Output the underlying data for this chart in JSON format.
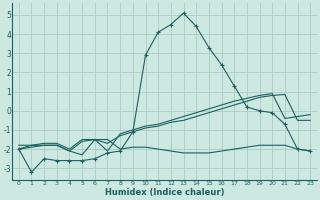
{
  "xlabel": "Humidex (Indice chaleur)",
  "bg_color": "#cce8e0",
  "grid_color": "#aaccc4",
  "line_color": "#1a6060",
  "xlim": [
    -0.5,
    23.5
  ],
  "ylim": [
    -3.6,
    5.6
  ],
  "xticks": [
    0,
    1,
    2,
    3,
    4,
    5,
    6,
    7,
    8,
    9,
    10,
    11,
    12,
    13,
    14,
    15,
    16,
    17,
    18,
    19,
    20,
    21,
    22,
    23
  ],
  "yticks": [
    -3,
    -2,
    -1,
    0,
    1,
    2,
    3,
    4,
    5
  ],
  "line1_x": [
    0,
    1,
    2,
    3,
    4,
    5,
    6,
    7,
    8,
    9,
    10,
    11,
    12,
    13,
    14,
    15,
    16,
    17,
    18,
    19,
    20,
    21,
    22,
    23
  ],
  "line1_y": [
    -2.0,
    -3.2,
    -2.5,
    -2.6,
    -2.6,
    -2.6,
    -2.5,
    -2.2,
    -2.1,
    -1.1,
    2.9,
    4.1,
    4.5,
    5.1,
    4.4,
    3.3,
    2.4,
    1.3,
    0.2,
    0.0,
    -0.1,
    -0.7,
    -2.0,
    -2.1
  ],
  "line2_x": [
    0,
    1,
    2,
    3,
    4,
    5,
    6,
    7,
    8,
    9,
    10,
    11,
    12,
    13,
    14,
    15,
    16,
    17,
    18,
    19,
    20,
    21,
    22,
    23
  ],
  "line2_y": [
    -2.0,
    -1.8,
    -1.8,
    -1.8,
    -2.1,
    -1.6,
    -1.5,
    -1.7,
    -1.3,
    -1.1,
    -0.9,
    -0.8,
    -0.6,
    -0.5,
    -0.3,
    -0.1,
    0.1,
    0.3,
    0.5,
    0.7,
    0.8,
    0.85,
    -0.5,
    -0.5
  ],
  "line3_x": [
    0,
    1,
    2,
    3,
    4,
    5,
    6,
    7,
    8,
    9,
    10,
    11,
    12,
    13,
    14,
    15,
    16,
    17,
    18,
    19,
    20,
    21,
    22,
    23
  ],
  "line3_y": [
    -2.0,
    -1.9,
    -1.8,
    -1.8,
    -2.1,
    -2.3,
    -1.5,
    -1.5,
    -2.0,
    -1.9,
    -1.9,
    -2.0,
    -2.1,
    -2.2,
    -2.2,
    -2.2,
    -2.1,
    -2.0,
    -1.9,
    -1.8,
    -1.8,
    -1.8,
    -2.0,
    -2.1
  ],
  "line4_x": [
    0,
    1,
    2,
    3,
    4,
    5,
    6,
    7,
    8,
    9,
    10,
    11,
    12,
    13,
    14,
    15,
    16,
    17,
    18,
    19,
    20,
    21,
    22,
    23
  ],
  "line4_y": [
    -1.8,
    -1.8,
    -1.7,
    -1.7,
    -2.0,
    -1.5,
    -1.5,
    -2.1,
    -1.2,
    -1.0,
    -0.8,
    -0.7,
    -0.5,
    -0.3,
    -0.1,
    0.1,
    0.3,
    0.5,
    0.65,
    0.8,
    0.9,
    -0.4,
    -0.3,
    -0.2
  ]
}
